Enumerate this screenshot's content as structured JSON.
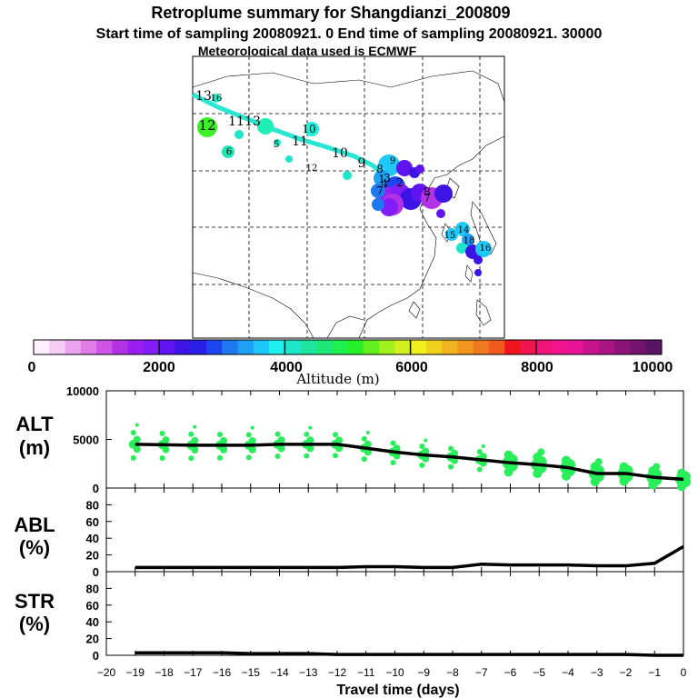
{
  "title": {
    "line1": "Retroplume summary for Shangdianzi_200809",
    "line2": "Start time of sampling 20080921.    0     End time of sampling 20080921. 30000",
    "line3": "Meteorological data used is ECMWF"
  },
  "colorbar": {
    "label": "Altitude (m)",
    "ticks": [
      "0",
      "2000",
      "4000",
      "6000",
      "8000",
      "10000"
    ],
    "colors": [
      "#fff0ff",
      "#f5cdf5",
      "#eba5f0",
      "#e17de8",
      "#cf55e6",
      "#b432e6",
      "#9b1ef0",
      "#821ef5",
      "#5f14f0",
      "#3c14e6",
      "#281ee6",
      "#1e46f0",
      "#1e78f0",
      "#1ea0f5",
      "#1ec8fa",
      "#1ef0f0",
      "#1ee6c8",
      "#1ee6a0",
      "#1ee678",
      "#1ef050",
      "#28f028",
      "#64f01e",
      "#a0f01e",
      "#d2f01e",
      "#f0f01e",
      "#f0d21e",
      "#f0b41e",
      "#f0961e",
      "#f0781e",
      "#f05a1e",
      "#f0141e",
      "#f01450",
      "#f01478",
      "#f0148c",
      "#e61496",
      "#c8148c",
      "#aa1482",
      "#8c1478",
      "#73146e",
      "#5a1464"
    ]
  },
  "map": {
    "labels": [
      {
        "t": "13",
        "c": "#000"
      },
      {
        "t": "16",
        "c": "#000"
      },
      {
        "t": "12",
        "c": "#000"
      },
      {
        "t": "11",
        "c": "#000"
      },
      {
        "t": "13",
        "c": "#000"
      },
      {
        "t": "10",
        "c": "#000"
      },
      {
        "t": "11",
        "c": "#000"
      },
      {
        "t": "10",
        "c": "#000"
      },
      {
        "t": "9",
        "c": "#000"
      },
      {
        "t": "8",
        "c": "#000"
      },
      {
        "t": "7",
        "c": "#000"
      },
      {
        "t": "5",
        "c": "#000"
      },
      {
        "t": "4",
        "c": "#000"
      },
      {
        "t": "3",
        "c": "#000"
      },
      {
        "t": "2",
        "c": "#000"
      },
      {
        "t": "1",
        "c": "#000"
      },
      {
        "t": "12",
        "c": "#000"
      },
      {
        "t": "9",
        "c": "#000"
      },
      {
        "t": "6",
        "c": "#000"
      },
      {
        "t": "8",
        "c": "#000"
      },
      {
        "t": "7",
        "c": "#000"
      },
      {
        "t": "15",
        "c": "#000"
      },
      {
        "t": "14",
        "c": "#000"
      },
      {
        "t": "16",
        "c": "#000"
      },
      {
        "t": "18",
        "c": "#000"
      }
    ]
  },
  "panels": {
    "alt": {
      "label1": "ALT",
      "label2": "(m)",
      "yticks": [
        "10000",
        "5000",
        "0"
      ]
    },
    "abl": {
      "label1": "ABL",
      "label2": "(%)",
      "yticks": [
        "80",
        "60",
        "40",
        "20",
        "0"
      ]
    },
    "str": {
      "label1": "STR",
      "label2": "(%)",
      "yticks": [
        "80",
        "60",
        "40",
        "20",
        "0"
      ]
    }
  },
  "xaxis": {
    "label": "Travel time (days)",
    "ticks": [
      "-20",
      "-19",
      "-18",
      "-17",
      "-16",
      "-15",
      "-14",
      "-13",
      "-12",
      "-11",
      "-10",
      "-9",
      "-8",
      "-7",
      "-6",
      "-5",
      "-4",
      "-3",
      "-2",
      "-1",
      "0"
    ]
  },
  "chart_data": {
    "type": "line",
    "x": [
      -19,
      -18,
      -17,
      -16,
      -15,
      -14,
      -13,
      -12,
      -11,
      -10,
      -9,
      -8,
      -7,
      -6,
      -5,
      -4,
      -3,
      -2,
      -1,
      0
    ],
    "series": [
      {
        "name": "ALT mean (m)",
        "values": [
          4500,
          4450,
          4400,
          4400,
          4400,
          4500,
          4500,
          4500,
          4100,
          3700,
          3400,
          3200,
          2900,
          2600,
          2400,
          2100,
          1500,
          1500,
          1100,
          900
        ]
      },
      {
        "name": "ABL (%)",
        "values": [
          5,
          5,
          5,
          5,
          5,
          5,
          5,
          5,
          6,
          6,
          5,
          5,
          9,
          8,
          8,
          8,
          7,
          7,
          10,
          30
        ]
      },
      {
        "name": "STR (%)",
        "values": [
          3,
          3,
          3,
          3,
          2,
          2,
          2,
          1,
          1,
          1,
          1,
          1,
          1,
          1,
          1,
          1,
          1,
          1,
          0,
          0
        ]
      }
    ],
    "title": "Retroplume summary for Shangdianzi_200809",
    "xlabel": "Travel time (days)",
    "ylim_alt": [
      0,
      10000
    ],
    "ylim_pct": [
      0,
      100
    ]
  }
}
